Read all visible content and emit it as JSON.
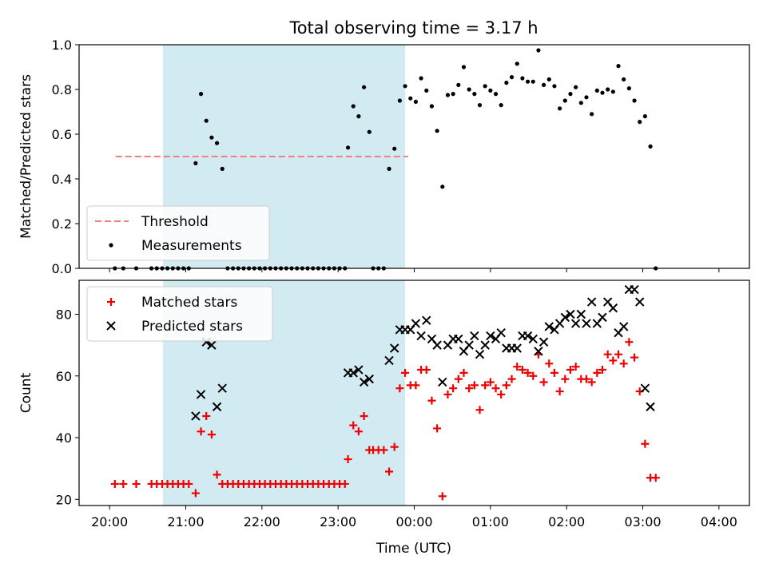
{
  "title": "Total observing time = 3.17 h",
  "xlabel": "Time (UTC)",
  "x_ticks": [
    "20:00",
    "21:00",
    "22:00",
    "23:00",
    "00:00",
    "01:00",
    "02:00",
    "03:00",
    "04:00"
  ],
  "colors": {
    "threshold": "#f08080",
    "measurement": "#000000",
    "matched": "#ee0000",
    "predicted": "#000000",
    "shade": "#add8e6"
  },
  "chart_data": [
    {
      "type": "scatter",
      "name": "ratio-panel",
      "ylabel": "Matched/Predicted stars",
      "xlim": [
        -0.4,
        8.4
      ],
      "ylim": [
        0,
        1.0
      ],
      "y_ticks": [
        "0.0",
        "0.2",
        "0.4",
        "0.6",
        "0.8",
        "1.0"
      ],
      "shaded_span": [
        0.7,
        3.88
      ],
      "threshold": {
        "label": "Threshold",
        "value": 0.5,
        "x_range": [
          0.08,
          3.92
        ]
      },
      "legend": {
        "placement": "lower-left",
        "entries": [
          "Threshold",
          "Measurements"
        ]
      },
      "series": [
        {
          "name": "Measurements",
          "points": [
            [
              0.07,
              0
            ],
            [
              0.18,
              0
            ],
            [
              0.35,
              0
            ],
            [
              0.55,
              0
            ],
            [
              0.62,
              0
            ],
            [
              0.69,
              0
            ],
            [
              0.76,
              0
            ],
            [
              0.83,
              0
            ],
            [
              0.9,
              0
            ],
            [
              0.97,
              0
            ],
            [
              1.04,
              0
            ],
            [
              1.13,
              0.47
            ],
            [
              1.2,
              0.78
            ],
            [
              1.27,
              0.66
            ],
            [
              1.34,
              0.585
            ],
            [
              1.41,
              0.56
            ],
            [
              1.48,
              0.445
            ],
            [
              1.55,
              0
            ],
            [
              1.62,
              0
            ],
            [
              1.69,
              0
            ],
            [
              1.76,
              0
            ],
            [
              1.83,
              0
            ],
            [
              1.9,
              0
            ],
            [
              1.97,
              0
            ],
            [
              2.04,
              0
            ],
            [
              2.11,
              0
            ],
            [
              2.18,
              0
            ],
            [
              2.25,
              0
            ],
            [
              2.32,
              0
            ],
            [
              2.39,
              0
            ],
            [
              2.46,
              0
            ],
            [
              2.53,
              0
            ],
            [
              2.6,
              0
            ],
            [
              2.67,
              0
            ],
            [
              2.74,
              0
            ],
            [
              2.81,
              0
            ],
            [
              2.88,
              0
            ],
            [
              2.95,
              0
            ],
            [
              3.02,
              0
            ],
            [
              3.09,
              0
            ],
            [
              3.13,
              0.54
            ],
            [
              3.2,
              0.725
            ],
            [
              3.27,
              0.68
            ],
            [
              3.34,
              0.81
            ],
            [
              3.41,
              0.61
            ],
            [
              3.46,
              0
            ],
            [
              3.53,
              0
            ],
            [
              3.6,
              0
            ],
            [
              3.67,
              0.445
            ],
            [
              3.74,
              0.535
            ],
            [
              3.81,
              0.75
            ],
            [
              3.88,
              0.815
            ],
            [
              3.95,
              0.76
            ],
            [
              4.02,
              0.745
            ],
            [
              4.09,
              0.85
            ],
            [
              4.16,
              0.795
            ],
            [
              4.23,
              0.725
            ],
            [
              4.3,
              0.615
            ],
            [
              4.37,
              0.365
            ],
            [
              4.44,
              0.775
            ],
            [
              4.51,
              0.78
            ],
            [
              4.58,
              0.82
            ],
            [
              4.65,
              0.9
            ],
            [
              4.72,
              0.8
            ],
            [
              4.79,
              0.78
            ],
            [
              4.86,
              0.73
            ],
            [
              4.93,
              0.815
            ],
            [
              5.0,
              0.795
            ],
            [
              5.07,
              0.78
            ],
            [
              5.14,
              0.73
            ],
            [
              5.21,
              0.83
            ],
            [
              5.28,
              0.855
            ],
            [
              5.35,
              0.915
            ],
            [
              5.42,
              0.85
            ],
            [
              5.49,
              0.835
            ],
            [
              5.56,
              0.835
            ],
            [
              5.63,
              0.975
            ],
            [
              5.7,
              0.82
            ],
            [
              5.77,
              0.845
            ],
            [
              5.84,
              0.815
            ],
            [
              5.91,
              0.715
            ],
            [
              5.98,
              0.75
            ],
            [
              6.05,
              0.78
            ],
            [
              6.12,
              0.81
            ],
            [
              6.19,
              0.74
            ],
            [
              6.26,
              0.765
            ],
            [
              6.33,
              0.69
            ],
            [
              6.4,
              0.795
            ],
            [
              6.47,
              0.785
            ],
            [
              6.54,
              0.8
            ],
            [
              6.61,
              0.79
            ],
            [
              6.68,
              0.905
            ],
            [
              6.75,
              0.845
            ],
            [
              6.82,
              0.805
            ],
            [
              6.89,
              0.75
            ],
            [
              6.96,
              0.655
            ],
            [
              7.03,
              0.68
            ],
            [
              7.1,
              0.545
            ],
            [
              7.17,
              0
            ]
          ]
        }
      ]
    },
    {
      "type": "scatter",
      "name": "count-panel",
      "ylabel": "Count",
      "xlim": [
        -0.4,
        8.4
      ],
      "ylim": [
        18,
        91
      ],
      "y_ticks": [
        "20",
        "40",
        "60",
        "80"
      ],
      "shaded_span": [
        0.7,
        3.88
      ],
      "legend": {
        "placement": "upper-left",
        "entries": [
          "Matched stars",
          "Predicted stars"
        ]
      },
      "series": [
        {
          "name": "Matched stars",
          "marker": "plus",
          "points": [
            [
              0.07,
              25
            ],
            [
              0.18,
              25
            ],
            [
              0.35,
              25
            ],
            [
              0.55,
              25
            ],
            [
              0.62,
              25
            ],
            [
              0.69,
              25
            ],
            [
              0.76,
              25
            ],
            [
              0.83,
              25
            ],
            [
              0.9,
              25
            ],
            [
              0.97,
              25
            ],
            [
              1.04,
              25
            ],
            [
              1.13,
              22
            ],
            [
              1.2,
              42
            ],
            [
              1.27,
              47
            ],
            [
              1.34,
              41
            ],
            [
              1.41,
              28
            ],
            [
              1.48,
              25
            ],
            [
              1.55,
              25
            ],
            [
              1.62,
              25
            ],
            [
              1.69,
              25
            ],
            [
              1.76,
              25
            ],
            [
              1.83,
              25
            ],
            [
              1.9,
              25
            ],
            [
              1.97,
              25
            ],
            [
              2.04,
              25
            ],
            [
              2.11,
              25
            ],
            [
              2.18,
              25
            ],
            [
              2.25,
              25
            ],
            [
              2.32,
              25
            ],
            [
              2.39,
              25
            ],
            [
              2.46,
              25
            ],
            [
              2.53,
              25
            ],
            [
              2.6,
              25
            ],
            [
              2.67,
              25
            ],
            [
              2.74,
              25
            ],
            [
              2.81,
              25
            ],
            [
              2.88,
              25
            ],
            [
              2.95,
              25
            ],
            [
              3.02,
              25
            ],
            [
              3.09,
              25
            ],
            [
              3.13,
              33
            ],
            [
              3.2,
              44
            ],
            [
              3.27,
              42
            ],
            [
              3.34,
              47
            ],
            [
              3.41,
              36
            ],
            [
              3.46,
              36
            ],
            [
              3.53,
              36
            ],
            [
              3.6,
              36
            ],
            [
              3.67,
              29
            ],
            [
              3.74,
              37
            ],
            [
              3.81,
              56
            ],
            [
              3.88,
              61
            ],
            [
              3.95,
              57
            ],
            [
              4.02,
              57
            ],
            [
              4.09,
              62
            ],
            [
              4.16,
              62
            ],
            [
              4.23,
              52
            ],
            [
              4.3,
              43
            ],
            [
              4.37,
              21
            ],
            [
              4.44,
              54
            ],
            [
              4.51,
              56
            ],
            [
              4.58,
              59
            ],
            [
              4.65,
              61
            ],
            [
              4.72,
              56
            ],
            [
              4.79,
              57
            ],
            [
              4.86,
              49
            ],
            [
              4.93,
              57
            ],
            [
              5.0,
              58
            ],
            [
              5.07,
              56
            ],
            [
              5.14,
              54
            ],
            [
              5.21,
              57
            ],
            [
              5.28,
              59
            ],
            [
              5.35,
              63
            ],
            [
              5.42,
              62
            ],
            [
              5.49,
              61
            ],
            [
              5.56,
              60
            ],
            [
              5.63,
              67
            ],
            [
              5.7,
              58
            ],
            [
              5.77,
              64
            ],
            [
              5.84,
              61
            ],
            [
              5.91,
              55
            ],
            [
              5.98,
              59
            ],
            [
              6.05,
              62
            ],
            [
              6.12,
              63
            ],
            [
              6.19,
              59
            ],
            [
              6.26,
              59
            ],
            [
              6.33,
              58
            ],
            [
              6.4,
              61
            ],
            [
              6.47,
              62
            ],
            [
              6.54,
              67
            ],
            [
              6.61,
              65
            ],
            [
              6.68,
              67
            ],
            [
              6.75,
              64
            ],
            [
              6.82,
              71
            ],
            [
              6.89,
              66
            ],
            [
              6.96,
              55
            ],
            [
              7.03,
              38
            ],
            [
              7.1,
              27
            ],
            [
              7.17,
              27
            ]
          ]
        },
        {
          "name": "Predicted stars",
          "marker": "cross",
          "points": [
            [
              1.13,
              47
            ],
            [
              1.2,
              54
            ],
            [
              1.27,
              71
            ],
            [
              1.34,
              70
            ],
            [
              1.41,
              50
            ],
            [
              1.48,
              56
            ],
            [
              3.13,
              61
            ],
            [
              3.2,
              61
            ],
            [
              3.27,
              62
            ],
            [
              3.34,
              58
            ],
            [
              3.41,
              59
            ],
            [
              3.67,
              65
            ],
            [
              3.74,
              69
            ],
            [
              3.81,
              75
            ],
            [
              3.88,
              75
            ],
            [
              3.95,
              75
            ],
            [
              4.02,
              77
            ],
            [
              4.09,
              73
            ],
            [
              4.16,
              78
            ],
            [
              4.23,
              72
            ],
            [
              4.3,
              70
            ],
            [
              4.37,
              58
            ],
            [
              4.44,
              70
            ],
            [
              4.51,
              72
            ],
            [
              4.58,
              72
            ],
            [
              4.65,
              68
            ],
            [
              4.72,
              70
            ],
            [
              4.79,
              73
            ],
            [
              4.86,
              67
            ],
            [
              4.93,
              70
            ],
            [
              5.0,
              73
            ],
            [
              5.07,
              72
            ],
            [
              5.14,
              74
            ],
            [
              5.21,
              69
            ],
            [
              5.28,
              69
            ],
            [
              5.35,
              69
            ],
            [
              5.42,
              73
            ],
            [
              5.49,
              73
            ],
            [
              5.56,
              72
            ],
            [
              5.63,
              68
            ],
            [
              5.7,
              71
            ],
            [
              5.77,
              76
            ],
            [
              5.84,
              75
            ],
            [
              5.91,
              77
            ],
            [
              5.98,
              79
            ],
            [
              6.05,
              80
            ],
            [
              6.12,
              77
            ],
            [
              6.19,
              80
            ],
            [
              6.26,
              77
            ],
            [
              6.33,
              84
            ],
            [
              6.4,
              77
            ],
            [
              6.47,
              79
            ],
            [
              6.54,
              84
            ],
            [
              6.61,
              82
            ],
            [
              6.68,
              74
            ],
            [
              6.75,
              76
            ],
            [
              6.82,
              88
            ],
            [
              6.89,
              88
            ],
            [
              6.96,
              84
            ],
            [
              7.03,
              56
            ],
            [
              7.1,
              50
            ]
          ]
        }
      ]
    }
  ]
}
